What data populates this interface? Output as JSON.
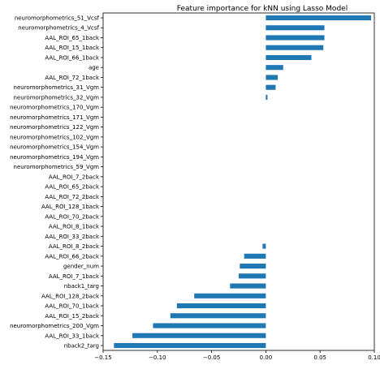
{
  "chart_data": {
    "type": "bar",
    "orientation": "horizontal",
    "title": "Feature importance for kNN using Lasso Model",
    "xlabel": "",
    "ylabel": "",
    "xlim": [
      -0.15,
      0.1
    ],
    "xticks": [
      "−0.15",
      "−0.10",
      "−0.05",
      "0.00",
      "0.05",
      "0.10"
    ],
    "bar_color": "#1f77b4",
    "grid": false,
    "categories": [
      "neuromorphometrics_51_Vcsf",
      "neuromorphometrics_4_Vcsf",
      "AAL_ROI_65_1back",
      "AAL_ROI_15_1back",
      "AAL_ROI_66_1back",
      "age",
      "AAL_ROI_72_1back",
      "neuromorphometrics_31_Vgm",
      "neuromorphometrics_32_Vgm",
      "neuromorphometrics_170_Vgm",
      "neuromorphometrics_171_Vgm",
      "neuromorphometrics_122_Vgm",
      "neuromorphometrics_102_Vgm",
      "neuromorphometrics_154_Vgm",
      "neuromorphometrics_194_Vgm",
      "neuromorphometrics_59_Vgm",
      "AAL_ROI_7_2back",
      "AAL_ROI_65_2back",
      "AAL_ROI_72_2back",
      "AAL_ROI_128_1back",
      "AAL_ROI_70_2back",
      "AAL_ROI_8_1back",
      "AAL_ROI_33_2back",
      "AAL_ROI_8_2back",
      "AAL_ROI_66_2back",
      "gender_num",
      "AAL_ROI_7_1back",
      "nback1_targ",
      "AAL_ROI_128_2back",
      "AAL_ROI_70_1back",
      "AAL_ROI_15_2back",
      "neuromorphometrics_200_Vgm",
      "AAL_ROI_33_1back",
      "nback2_targ"
    ],
    "values": [
      0.097,
      0.054,
      0.054,
      0.053,
      0.042,
      0.016,
      0.011,
      0.009,
      0.0015,
      0,
      0,
      0,
      0,
      0,
      0,
      0,
      0,
      0,
      0,
      0,
      0,
      0,
      0,
      -0.003,
      -0.02,
      -0.024,
      -0.025,
      -0.033,
      -0.066,
      -0.082,
      -0.088,
      -0.104,
      -0.123,
      -0.14
    ]
  }
}
